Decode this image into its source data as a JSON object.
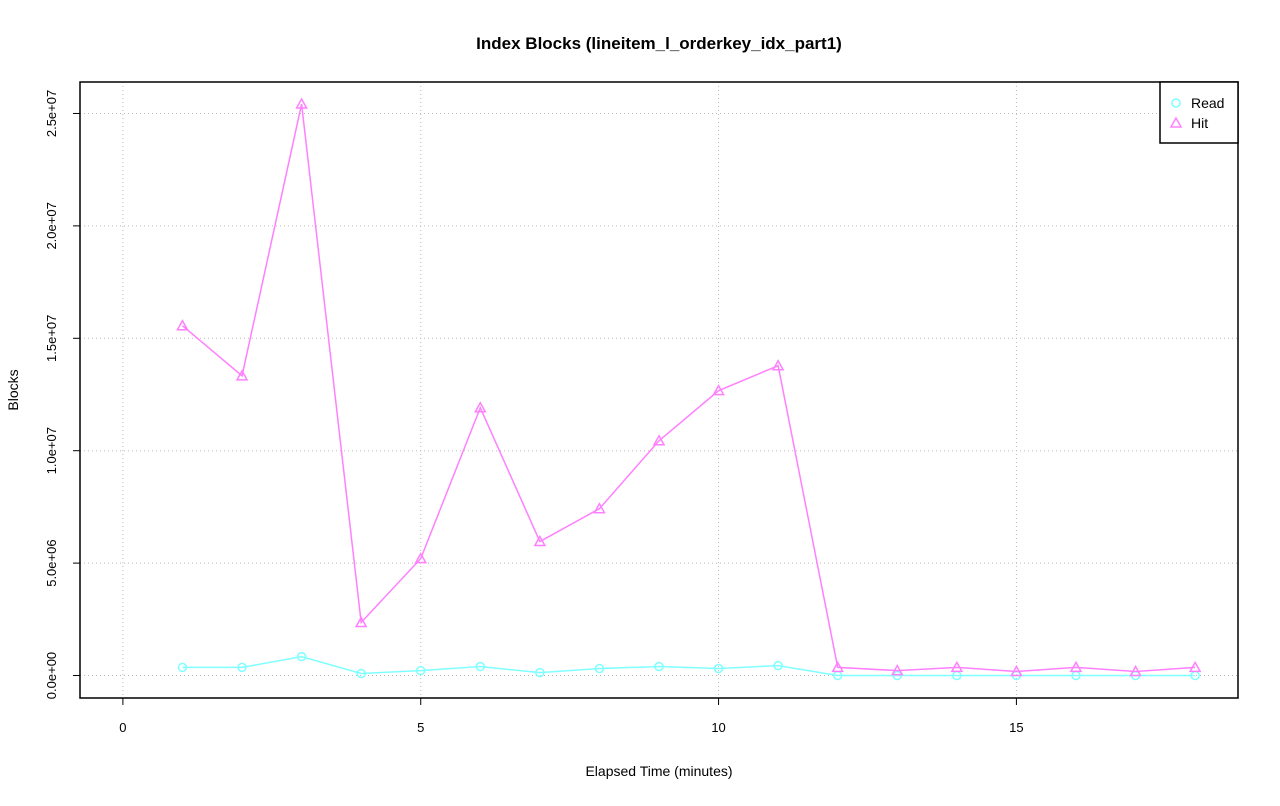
{
  "chart_data": {
    "type": "line",
    "title": "Index Blocks (lineitem_l_orderkey_idx_part1)",
    "xlabel": "Elapsed Time (minutes)",
    "ylabel": "Blocks",
    "xlim": [
      -0.72,
      18.72
    ],
    "ylim": [
      -1000000,
      26400000
    ],
    "xticks": [
      0,
      5,
      10,
      15
    ],
    "xtick_labels": [
      "0",
      "5",
      "10",
      "15"
    ],
    "yticks": [
      0,
      5000000,
      10000000,
      15000000,
      20000000,
      25000000
    ],
    "ytick_labels": [
      "0.0e+00",
      "5.0e+06",
      "1.0e+07",
      "1.5e+07",
      "2.0e+07",
      "2.5e+07"
    ],
    "grid": true,
    "legend_position": "top-right",
    "x": [
      1,
      2,
      3,
      4,
      5,
      6,
      7,
      8,
      9,
      10,
      11,
      12,
      13,
      14,
      15,
      16,
      17,
      18
    ],
    "series": [
      {
        "name": "Read",
        "color": "#7fffff",
        "marker": "circle",
        "values": [
          360000,
          360000,
          840000,
          90000,
          220000,
          400000,
          130000,
          310000,
          400000,
          310000,
          440000,
          0,
          0,
          0,
          0,
          0,
          0,
          0
        ]
      },
      {
        "name": "Hit",
        "color": "#ff80ff",
        "marker": "triangle",
        "values": [
          15560000,
          13330000,
          25420000,
          2360000,
          5200000,
          11910000,
          5960000,
          7420000,
          10440000,
          12670000,
          13780000,
          360000,
          220000,
          360000,
          180000,
          360000,
          180000,
          360000
        ]
      }
    ]
  }
}
